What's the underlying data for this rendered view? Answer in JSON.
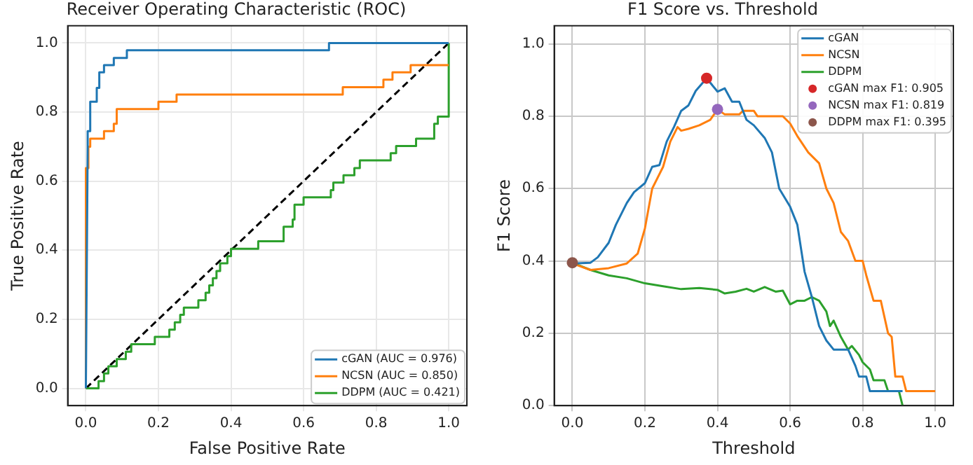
{
  "chart_data": [
    {
      "type": "line",
      "title": "Receiver Operating Characteristic (ROC)",
      "xlabel": "False Positive Rate",
      "ylabel": "True Positive Rate",
      "xlim": [
        -0.05,
        1.05
      ],
      "ylim": [
        -0.05,
        1.05
      ],
      "xticks": [
        {
          "value": 0,
          "label": "0.0"
        },
        {
          "value": 0.2,
          "label": "0.2"
        },
        {
          "value": 0.4,
          "label": "0.4"
        },
        {
          "value": 0.6,
          "label": "0.6"
        },
        {
          "value": 0.8,
          "label": "0.8"
        },
        {
          "value": 1,
          "label": "1.0"
        }
      ],
      "yticks": [
        {
          "value": 0,
          "label": "0.0"
        },
        {
          "value": 0.2,
          "label": "0.2"
        },
        {
          "value": 0.4,
          "label": "0.4"
        },
        {
          "value": 0.6,
          "label": "0.6"
        },
        {
          "value": 0.8,
          "label": "0.8"
        },
        {
          "value": 1,
          "label": "1.0"
        }
      ],
      "grid": true,
      "legend": "bottom right",
      "series": [
        {
          "name": "cGAN (AUC = 0.976)",
          "color": "#1f77b4",
          "x": [
            0,
            0.005,
            0.005,
            0.012,
            0.012,
            0.03,
            0.03,
            0.037,
            0.037,
            0.05,
            0.05,
            0.077,
            0.077,
            0.113,
            0.113,
            0.67,
            0.67,
            1
          ],
          "values": [
            0,
            0.7,
            0.745,
            0.745,
            0.83,
            0.83,
            0.87,
            0.87,
            0.915,
            0.915,
            0.936,
            0.936,
            0.957,
            0.957,
            0.979,
            0.979,
            1.0,
            1.0
          ]
        },
        {
          "name": "NCSN (AUC = 0.850)",
          "color": "#ff7f0e",
          "x": [
            0,
            0,
            0.007,
            0.007,
            0.012,
            0.012,
            0.05,
            0.05,
            0.077,
            0.077,
            0.085,
            0.085,
            0.2,
            0.2,
            0.25,
            0.25,
            0.708,
            0.708,
            0.82,
            0.82,
            0.845,
            0.845,
            0.895,
            0.895,
            1
          ],
          "values": [
            0,
            0.638,
            0.638,
            0.7,
            0.7,
            0.723,
            0.723,
            0.745,
            0.745,
            0.766,
            0.766,
            0.809,
            0.809,
            0.83,
            0.83,
            0.851,
            0.851,
            0.872,
            0.872,
            0.894,
            0.894,
            0.915,
            0.915,
            0.936,
            0.936
          ]
        },
        {
          "name": "DDPM (AUC = 0.421)",
          "color": "#2ca02c",
          "x": [
            0,
            0.035,
            0.035,
            0.05,
            0.05,
            0.062,
            0.062,
            0.085,
            0.085,
            0.11,
            0.11,
            0.125,
            0.125,
            0.19,
            0.19,
            0.23,
            0.23,
            0.245,
            0.245,
            0.26,
            0.26,
            0.27,
            0.27,
            0.31,
            0.31,
            0.33,
            0.33,
            0.34,
            0.34,
            0.35,
            0.35,
            0.36,
            0.36,
            0.37,
            0.37,
            0.39,
            0.39,
            0.4,
            0.4,
            0.475,
            0.475,
            0.545,
            0.545,
            0.57,
            0.57,
            0.575,
            0.575,
            0.6,
            0.6,
            0.675,
            0.675,
            0.682,
            0.682,
            0.71,
            0.71,
            0.74,
            0.74,
            0.755,
            0.755,
            0.84,
            0.84,
            0.855,
            0.855,
            0.91,
            0.91,
            0.96,
            0.96,
            0.97,
            0.97,
            1,
            1
          ],
          "values": [
            0,
            0,
            0.021,
            0.021,
            0.043,
            0.043,
            0.064,
            0.064,
            0.085,
            0.085,
            0.106,
            0.106,
            0.128,
            0.128,
            0.149,
            0.149,
            0.17,
            0.17,
            0.191,
            0.191,
            0.213,
            0.213,
            0.234,
            0.234,
            0.255,
            0.255,
            0.277,
            0.277,
            0.298,
            0.298,
            0.319,
            0.319,
            0.34,
            0.34,
            0.362,
            0.362,
            0.383,
            0.383,
            0.404,
            0.404,
            0.426,
            0.426,
            0.468,
            0.468,
            0.489,
            0.489,
            0.532,
            0.532,
            0.553,
            0.553,
            0.574,
            0.574,
            0.596,
            0.596,
            0.617,
            0.617,
            0.638,
            0.638,
            0.66,
            0.66,
            0.681,
            0.681,
            0.702,
            0.702,
            0.723,
            0.723,
            0.766,
            0.766,
            0.787,
            0.787,
            1.0
          ]
        },
        {
          "color": "#000000",
          "line_style": "dashed",
          "x": [
            0,
            1
          ],
          "values": [
            0,
            1
          ]
        }
      ]
    },
    {
      "type": "line",
      "title": "F1 Score vs. Threshold",
      "xlabel": "Threshold",
      "ylabel": "F1 Score",
      "xlim": [
        -0.05,
        1.05
      ],
      "ylim": [
        0,
        1.05
      ],
      "xticks": [
        {
          "value": 0,
          "label": "0.0"
        },
        {
          "value": 0.2,
          "label": "0.2"
        },
        {
          "value": 0.4,
          "label": "0.4"
        },
        {
          "value": 0.6,
          "label": "0.6"
        },
        {
          "value": 0.8,
          "label": "0.8"
        },
        {
          "value": 1,
          "label": "1.0"
        }
      ],
      "yticks": [
        {
          "value": 0,
          "label": "0.0"
        },
        {
          "value": 0.2,
          "label": "0.2"
        },
        {
          "value": 0.4,
          "label": "0.4"
        },
        {
          "value": 0.6,
          "label": "0.6"
        },
        {
          "value": 0.8,
          "label": "0.8"
        },
        {
          "value": 1,
          "label": "1.0"
        }
      ],
      "grid": true,
      "legend": "top right",
      "series": [
        {
          "name": "cGAN",
          "color": "#1f77b4",
          "x": [
            0,
            0.05,
            0.07,
            0.1,
            0.12,
            0.15,
            0.17,
            0.2,
            0.22,
            0.24,
            0.26,
            0.28,
            0.3,
            0.32,
            0.34,
            0.37,
            0.4,
            0.42,
            0.44,
            0.46,
            0.48,
            0.5,
            0.53,
            0.55,
            0.57,
            0.6,
            0.62,
            0.64,
            0.66,
            0.68,
            0.7,
            0.72,
            0.76,
            0.78,
            0.79,
            0.81,
            0.82,
            0.91
          ],
          "values": [
            0.393,
            0.395,
            0.41,
            0.45,
            0.5,
            0.56,
            0.59,
            0.615,
            0.66,
            0.665,
            0.73,
            0.77,
            0.815,
            0.83,
            0.87,
            0.905,
            0.868,
            0.877,
            0.84,
            0.84,
            0.79,
            0.775,
            0.74,
            0.7,
            0.6,
            0.55,
            0.5,
            0.37,
            0.3,
            0.22,
            0.18,
            0.155,
            0.155,
            0.11,
            0.08,
            0.08,
            0.04,
            0.04
          ]
        },
        {
          "name": "NCSN",
          "color": "#ff7f0e",
          "x": [
            0,
            0.05,
            0.1,
            0.15,
            0.18,
            0.2,
            0.22,
            0.25,
            0.27,
            0.29,
            0.3,
            0.32,
            0.35,
            0.38,
            0.4,
            0.42,
            0.46,
            0.47,
            0.5,
            0.51,
            0.58,
            0.6,
            0.62,
            0.65,
            0.68,
            0.7,
            0.72,
            0.74,
            0.76,
            0.78,
            0.8,
            0.81,
            0.83,
            0.85,
            0.87,
            0.88,
            0.89,
            0.91,
            0.92,
            1.0
          ],
          "values": [
            0.393,
            0.375,
            0.38,
            0.393,
            0.42,
            0.49,
            0.6,
            0.66,
            0.73,
            0.77,
            0.76,
            0.765,
            0.775,
            0.79,
            0.819,
            0.805,
            0.805,
            0.815,
            0.815,
            0.8,
            0.8,
            0.78,
            0.745,
            0.7,
            0.67,
            0.6,
            0.56,
            0.48,
            0.455,
            0.4,
            0.4,
            0.36,
            0.29,
            0.29,
            0.2,
            0.19,
            0.08,
            0.08,
            0.04,
            0.04
          ]
        },
        {
          "name": "DDPM",
          "color": "#2ca02c",
          "x": [
            0,
            0.05,
            0.1,
            0.15,
            0.2,
            0.25,
            0.3,
            0.35,
            0.4,
            0.42,
            0.45,
            0.48,
            0.5,
            0.53,
            0.56,
            0.58,
            0.6,
            0.62,
            0.64,
            0.66,
            0.68,
            0.7,
            0.71,
            0.72,
            0.74,
            0.76,
            0.77,
            0.79,
            0.8,
            0.82,
            0.83,
            0.86,
            0.87,
            0.9,
            0.91
          ],
          "values": [
            0.395,
            0.375,
            0.36,
            0.352,
            0.338,
            0.33,
            0.322,
            0.325,
            0.32,
            0.31,
            0.315,
            0.323,
            0.315,
            0.328,
            0.315,
            0.318,
            0.28,
            0.29,
            0.29,
            0.3,
            0.29,
            0.26,
            0.22,
            0.235,
            0.19,
            0.155,
            0.165,
            0.14,
            0.12,
            0.1,
            0.07,
            0.07,
            0.04,
            0.04,
            0.0
          ]
        },
        {
          "type": "scatter",
          "marker": "circle",
          "name": "cGAN max F1: 0.905",
          "color": "#d62728",
          "x": [
            0.37
          ],
          "values": [
            0.905
          ]
        },
        {
          "type": "scatter",
          "marker": "circle",
          "name": "NCSN max F1: 0.819",
          "color": "#9467bd",
          "x": [
            0.4
          ],
          "values": [
            0.819
          ]
        },
        {
          "type": "scatter",
          "marker": "circle",
          "name": "DDPM max F1: 0.395",
          "color": "#8c564b",
          "x": [
            0
          ],
          "values": [
            0.395
          ]
        }
      ]
    }
  ]
}
